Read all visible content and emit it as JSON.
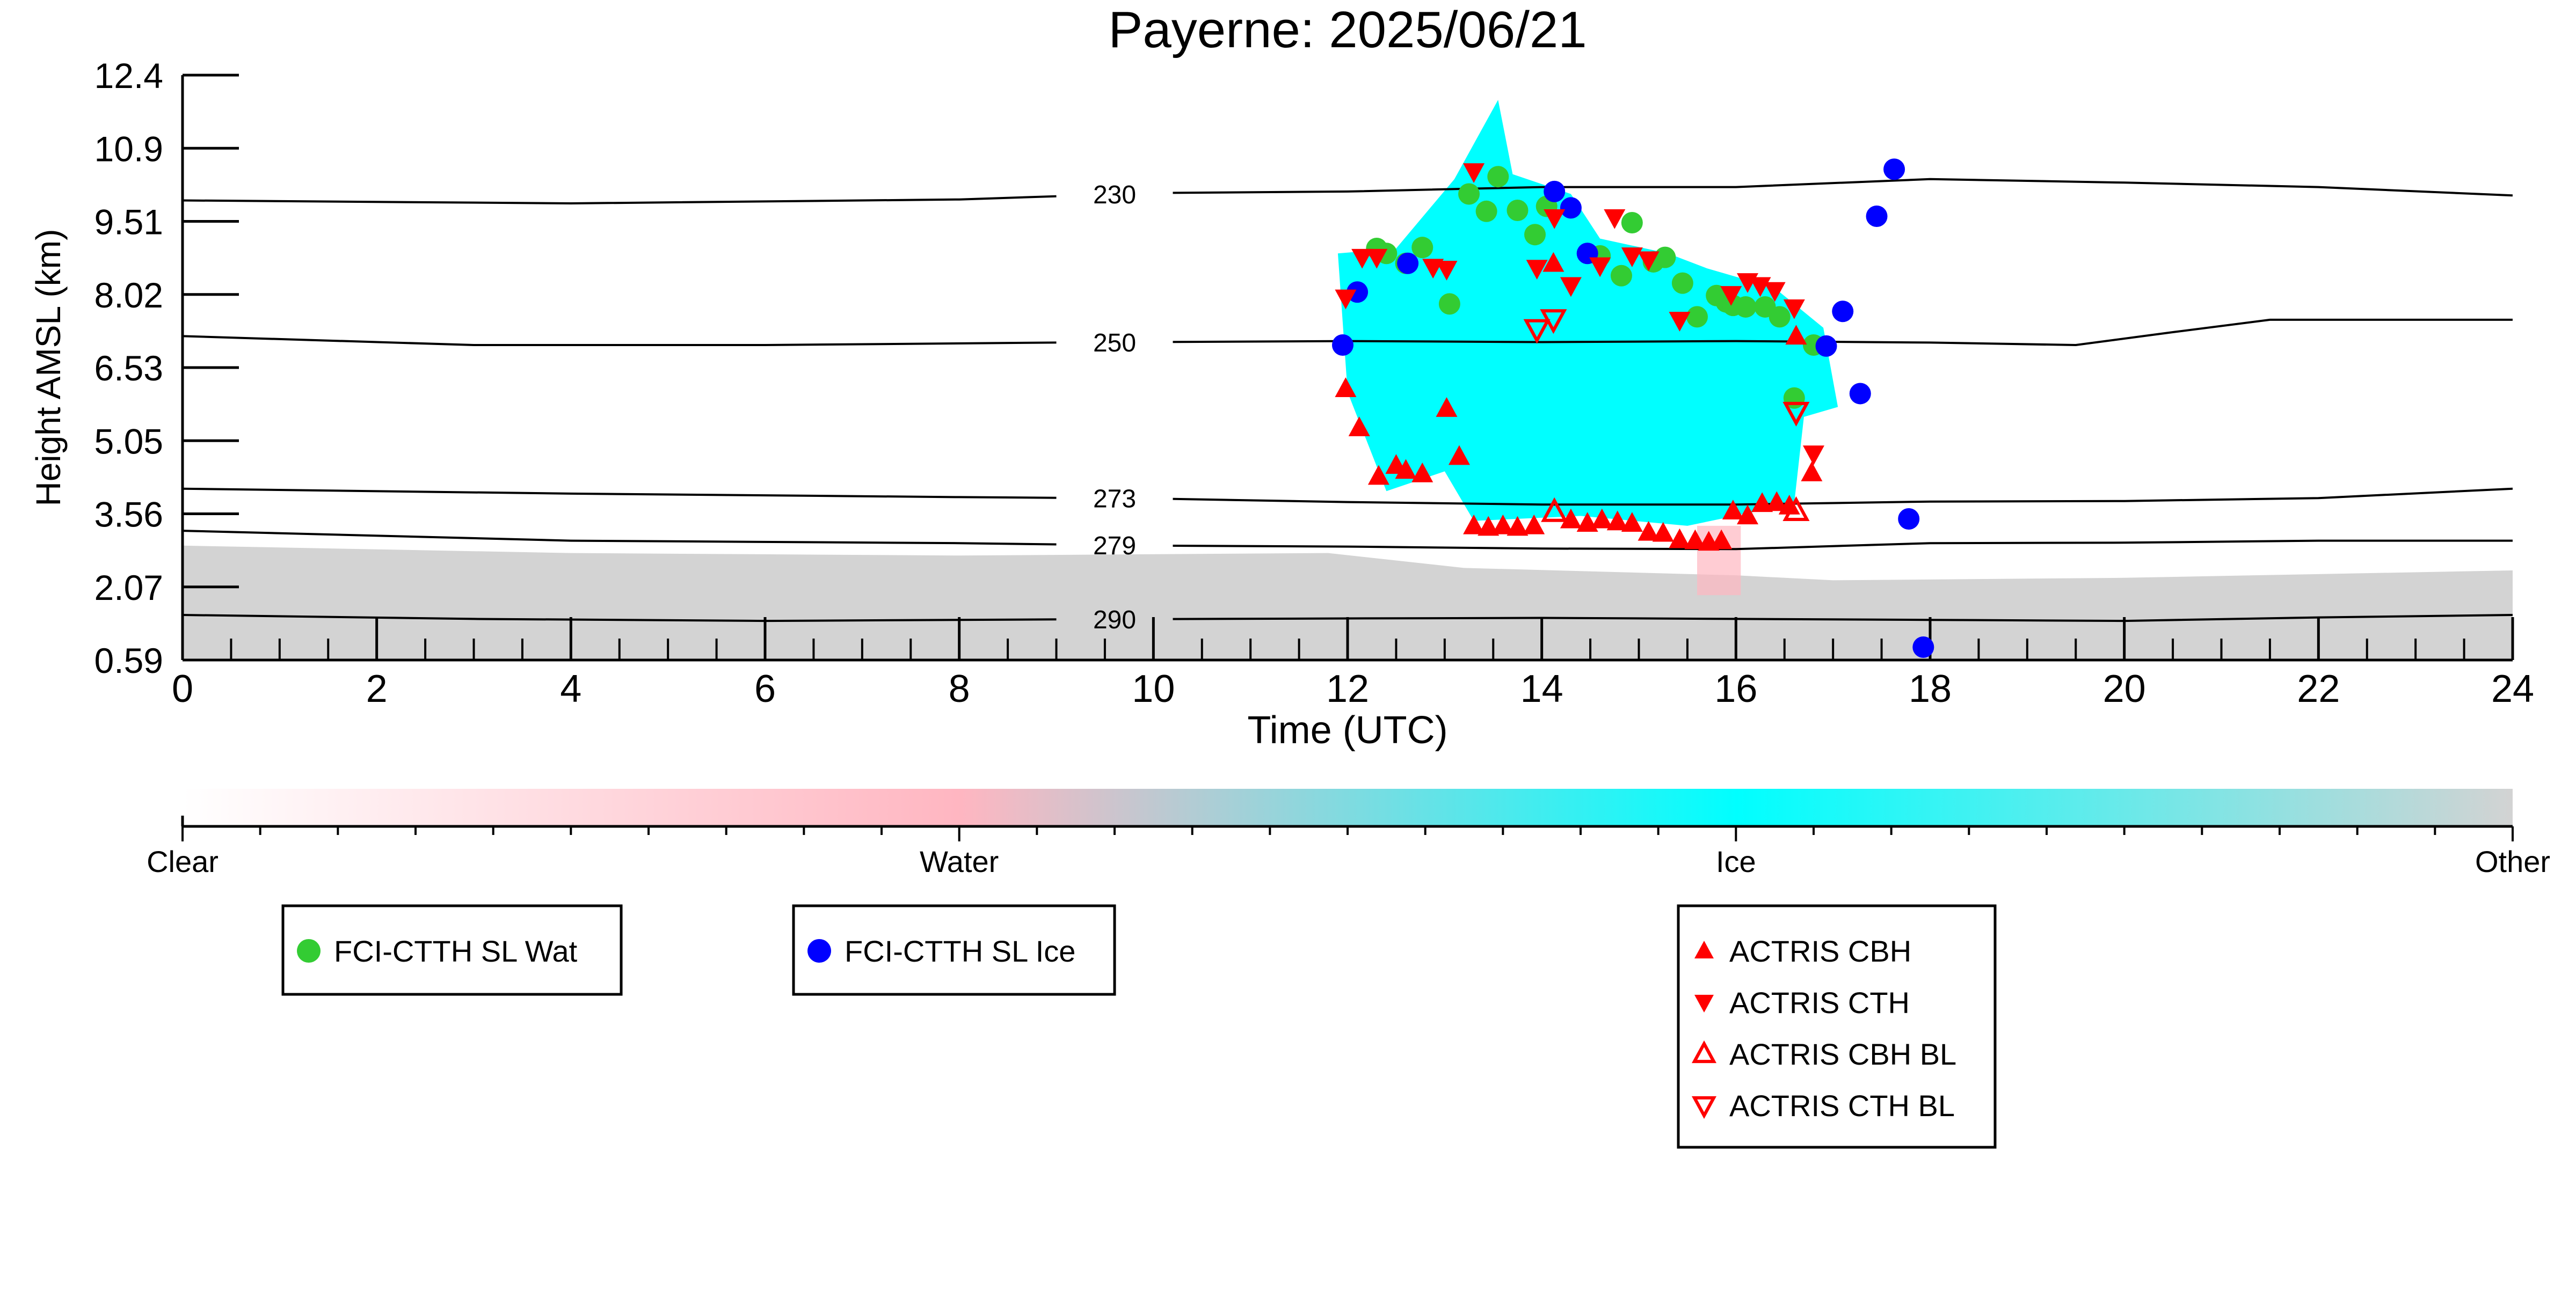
{
  "chart_data": {
    "type": "scatter",
    "title": "Payerne: 2025/06/21",
    "xlabel": "Time (UTC)",
    "ylabel": "Height AMSL (km)",
    "xlim": [
      0,
      24
    ],
    "ylim": [
      0.59,
      12.4
    ],
    "xticks": [
      "0",
      "2",
      "4",
      "6",
      "8",
      "10",
      "12",
      "14",
      "16",
      "18",
      "20",
      "22",
      "24"
    ],
    "yticks": [
      "0.59",
      "2.07",
      "3.56",
      "5.05",
      "6.53",
      "8.02",
      "9.51",
      "10.9",
      "12.4"
    ],
    "grid": false,
    "background_layer": "cloud classification time-height field (clear / water / ice / other)",
    "isotherms": [
      {
        "label": "230",
        "label_x": 9.6,
        "points": [
          [
            0,
            9.87
          ],
          [
            4,
            9.81
          ],
          [
            8,
            9.89
          ],
          [
            10,
            10.02
          ],
          [
            12,
            10.05
          ],
          [
            14,
            10.14
          ],
          [
            16,
            10.14
          ],
          [
            18,
            10.3
          ],
          [
            20,
            10.23
          ],
          [
            22,
            10.14
          ],
          [
            24,
            9.97
          ]
        ]
      },
      {
        "label": "250",
        "label_x": 9.6,
        "points": [
          [
            0,
            7.13
          ],
          [
            3,
            6.95
          ],
          [
            6,
            6.95
          ],
          [
            9,
            7.0
          ],
          [
            12,
            7.03
          ],
          [
            14,
            7.01
          ],
          [
            16,
            7.03
          ],
          [
            18,
            7.0
          ],
          [
            19.5,
            6.95
          ],
          [
            20.5,
            7.21
          ],
          [
            21.5,
            7.46
          ],
          [
            24,
            7.46
          ]
        ]
      },
      {
        "label": "273",
        "label_x": 9.6,
        "points": [
          [
            0,
            4.05
          ],
          [
            4,
            3.95
          ],
          [
            8,
            3.88
          ],
          [
            10,
            3.85
          ],
          [
            12,
            3.78
          ],
          [
            14,
            3.73
          ],
          [
            16,
            3.73
          ],
          [
            18,
            3.79
          ],
          [
            20,
            3.8
          ],
          [
            22,
            3.86
          ],
          [
            24,
            4.05
          ]
        ]
      },
      {
        "label": "279",
        "label_x": 9.6,
        "points": [
          [
            0,
            3.2
          ],
          [
            4,
            3.0
          ],
          [
            8,
            2.95
          ],
          [
            10,
            2.9
          ],
          [
            12,
            2.88
          ],
          [
            14,
            2.84
          ],
          [
            16,
            2.83
          ],
          [
            18,
            2.95
          ],
          [
            20,
            2.96
          ],
          [
            22,
            3.0
          ],
          [
            24,
            3.0
          ]
        ]
      },
      {
        "label": "290",
        "label_x": 9.6,
        "points": [
          [
            0,
            1.5
          ],
          [
            3,
            1.42
          ],
          [
            6,
            1.38
          ],
          [
            9,
            1.41
          ],
          [
            12,
            1.43
          ],
          [
            14,
            1.44
          ],
          [
            16,
            1.42
          ],
          [
            18,
            1.4
          ],
          [
            20,
            1.38
          ],
          [
            22,
            1.45
          ],
          [
            24,
            1.5
          ]
        ]
      }
    ],
    "series": [
      {
        "name": "FCI-CTTH SL Wat",
        "marker": "circle",
        "color": "#33cc33",
        "points": [
          [
            12.3,
            8.9
          ],
          [
            12.4,
            8.8
          ],
          [
            12.6,
            8.6
          ],
          [
            12.77,
            8.92
          ],
          [
            13.05,
            7.78
          ],
          [
            13.25,
            10.0
          ],
          [
            13.43,
            9.65
          ],
          [
            13.55,
            10.35
          ],
          [
            13.75,
            9.67
          ],
          [
            13.93,
            9.18
          ],
          [
            14.05,
            9.75
          ],
          [
            14.6,
            8.75
          ],
          [
            14.82,
            8.35
          ],
          [
            14.93,
            9.42
          ],
          [
            15.15,
            8.63
          ],
          [
            15.27,
            8.72
          ],
          [
            15.45,
            8.2
          ],
          [
            15.6,
            7.52
          ],
          [
            15.8,
            7.95
          ],
          [
            15.9,
            7.82
          ],
          [
            15.97,
            7.75
          ],
          [
            16.1,
            7.72
          ],
          [
            16.3,
            7.72
          ],
          [
            16.45,
            7.52
          ],
          [
            16.6,
            5.88
          ],
          [
            16.8,
            6.95
          ]
        ]
      },
      {
        "name": "FCI-CTTH SL Ice",
        "marker": "circle",
        "color": "#0000ff",
        "points": [
          [
            11.95,
            6.95
          ],
          [
            12.1,
            8.02
          ],
          [
            12.62,
            8.6
          ],
          [
            14.13,
            10.05
          ],
          [
            14.3,
            9.72
          ],
          [
            14.47,
            8.8
          ],
          [
            16.93,
            6.93
          ],
          [
            17.1,
            7.63
          ],
          [
            17.28,
            5.97
          ],
          [
            17.45,
            9.55
          ],
          [
            17.63,
            10.5
          ],
          [
            17.78,
            3.44
          ],
          [
            17.93,
            0.85
          ]
        ]
      },
      {
        "name": "ACTRIS CBH",
        "marker": "triangle-up",
        "color": "#ff0000",
        "points": [
          [
            11.98,
            6.07
          ],
          [
            12.12,
            5.28
          ],
          [
            12.32,
            4.3
          ],
          [
            12.5,
            4.52
          ],
          [
            12.6,
            4.42
          ],
          [
            12.77,
            4.35
          ],
          [
            13.02,
            5.67
          ],
          [
            13.15,
            4.7
          ],
          [
            13.3,
            3.3
          ],
          [
            13.45,
            3.27
          ],
          [
            13.6,
            3.3
          ],
          [
            13.75,
            3.27
          ],
          [
            13.92,
            3.3
          ],
          [
            14.12,
            8.6
          ],
          [
            14.3,
            3.42
          ],
          [
            14.47,
            3.35
          ],
          [
            14.62,
            3.42
          ],
          [
            14.78,
            3.38
          ],
          [
            14.93,
            3.35
          ],
          [
            15.1,
            3.17
          ],
          [
            15.25,
            3.15
          ],
          [
            15.42,
            3.02
          ],
          [
            15.58,
            3.0
          ],
          [
            15.72,
            2.97
          ],
          [
            15.85,
            3.0
          ],
          [
            15.97,
            3.6
          ],
          [
            16.12,
            3.5
          ],
          [
            16.27,
            3.75
          ],
          [
            16.42,
            3.77
          ],
          [
            16.55,
            3.7
          ],
          [
            16.62,
            7.13
          ],
          [
            16.78,
            4.37
          ]
        ]
      },
      {
        "name": "ACTRIS CTH",
        "marker": "triangle-down",
        "color": "#ff0000",
        "points": [
          [
            11.98,
            7.9
          ],
          [
            12.15,
            8.72
          ],
          [
            12.3,
            8.72
          ],
          [
            12.88,
            8.52
          ],
          [
            13.02,
            8.48
          ],
          [
            13.3,
            10.45
          ],
          [
            13.95,
            8.5
          ],
          [
            14.13,
            9.52
          ],
          [
            14.3,
            8.15
          ],
          [
            14.6,
            8.55
          ],
          [
            14.75,
            9.52
          ],
          [
            14.93,
            8.75
          ],
          [
            15.1,
            8.67
          ],
          [
            15.42,
            7.45
          ],
          [
            15.95,
            7.97
          ],
          [
            16.12,
            8.23
          ],
          [
            16.25,
            8.15
          ],
          [
            16.4,
            8.05
          ],
          [
            16.6,
            7.7
          ],
          [
            16.8,
            4.75
          ]
        ]
      },
      {
        "name": "ACTRIS CBH BL",
        "marker": "triangle-up-open",
        "color": "#ff0000",
        "points": [
          [
            14.13,
            3.58
          ],
          [
            16.62,
            3.6
          ]
        ]
      },
      {
        "name": "ACTRIS CTH BL",
        "marker": "triangle-down-open",
        "color": "#ff0000",
        "points": [
          [
            13.95,
            7.27
          ],
          [
            14.12,
            7.47
          ],
          [
            16.62,
            5.6
          ]
        ]
      }
    ],
    "colorbar": {
      "ticks": [
        "Clear",
        "Water",
        "Ice",
        "Other"
      ],
      "stops": [
        "#ffffff",
        "#ffb6c1",
        "#00ffff",
        "#d3d3d3"
      ]
    },
    "legends": [
      {
        "entries": [
          "FCI-CTTH SL Wat"
        ]
      },
      {
        "entries": [
          "FCI-CTTH SL Ice"
        ]
      },
      {
        "entries": [
          "ACTRIS CBH",
          "ACTRIS CTH",
          "ACTRIS CBH BL",
          "ACTRIS CTH BL"
        ]
      }
    ]
  }
}
